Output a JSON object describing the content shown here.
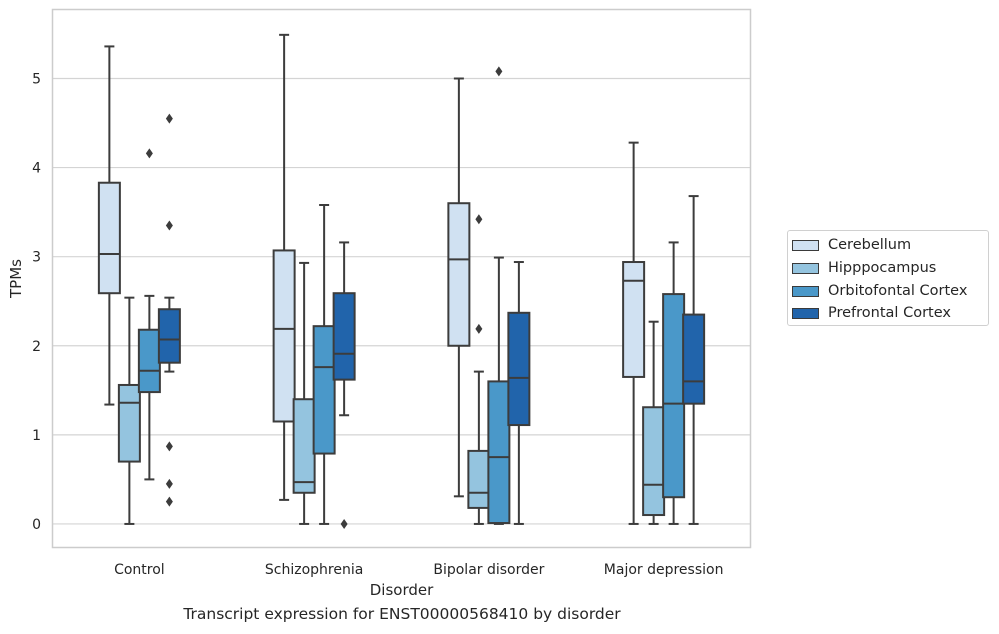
{
  "chart_data": {
    "type": "box",
    "caption": "Transcript expression for ENST00000568410 by disorder",
    "xlabel": "Disorder",
    "ylabel": "TPMs",
    "ylim": [
      -0.27,
      5.78
    ],
    "yticks": [
      0,
      1,
      2,
      3,
      4,
      5
    ],
    "grid": "horizontal",
    "legend_position": "right",
    "categories": [
      "Control",
      "Schizophrenia",
      "Bipolar disorder",
      "Major depression"
    ],
    "series": [
      {
        "name": "Cerebellum",
        "color": "#d0e1f2",
        "boxes": [
          {
            "whisker_low": 1.34,
            "q1": 2.59,
            "median": 3.03,
            "q3": 3.83,
            "whisker_high": 5.36,
            "outliers": []
          },
          {
            "whisker_low": 0.27,
            "q1": 1.15,
            "median": 2.19,
            "q3": 3.07,
            "whisker_high": 5.49,
            "outliers": []
          },
          {
            "whisker_low": 0.31,
            "q1": 2.0,
            "median": 2.97,
            "q3": 3.6,
            "whisker_high": 5.0,
            "outliers": []
          },
          {
            "whisker_low": 0.0,
            "q1": 1.65,
            "median": 2.73,
            "q3": 2.94,
            "whisker_high": 4.28,
            "outliers": []
          }
        ]
      },
      {
        "name": "Hipppocampus",
        "color": "#94c4df",
        "boxes": [
          {
            "whisker_low": 0.0,
            "q1": 0.7,
            "median": 1.36,
            "q3": 1.56,
            "whisker_high": 2.54,
            "outliers": []
          },
          {
            "whisker_low": 0.0,
            "q1": 0.35,
            "median": 0.47,
            "q3": 1.4,
            "whisker_high": 2.93,
            "outliers": []
          },
          {
            "whisker_low": 0.0,
            "q1": 0.18,
            "median": 0.35,
            "q3": 0.82,
            "whisker_high": 1.71,
            "outliers": [
              3.42,
              2.19
            ]
          },
          {
            "whisker_low": 0.0,
            "q1": 0.1,
            "median": 0.44,
            "q3": 1.31,
            "whisker_high": 2.27,
            "outliers": []
          }
        ]
      },
      {
        "name": "Orbitofontal Cortex",
        "color": "#4a98c9",
        "boxes": [
          {
            "whisker_low": 0.5,
            "q1": 1.48,
            "median": 1.72,
            "q3": 2.18,
            "whisker_high": 2.56,
            "outliers": [
              4.16
            ]
          },
          {
            "whisker_low": 0.0,
            "q1": 0.79,
            "median": 1.76,
            "q3": 2.22,
            "whisker_high": 3.58,
            "outliers": []
          },
          {
            "whisker_low": 0.0,
            "q1": 0.01,
            "median": 0.75,
            "q3": 1.6,
            "whisker_high": 2.99,
            "outliers": [
              5.08
            ]
          },
          {
            "whisker_low": 0.0,
            "q1": 0.3,
            "median": 1.35,
            "q3": 2.58,
            "whisker_high": 3.16,
            "outliers": []
          }
        ]
      },
      {
        "name": "Prefrontal Cortex",
        "color": "#2164ab",
        "boxes": [
          {
            "whisker_low": 1.71,
            "q1": 1.81,
            "median": 2.07,
            "q3": 2.41,
            "whisker_high": 2.54,
            "outliers": [
              4.55,
              3.35,
              0.87,
              0.45,
              0.25
            ]
          },
          {
            "whisker_low": 1.22,
            "q1": 1.62,
            "median": 1.91,
            "q3": 2.59,
            "whisker_high": 3.16,
            "outliers": [
              0.0
            ]
          },
          {
            "whisker_low": 0.0,
            "q1": 1.11,
            "median": 1.64,
            "q3": 2.37,
            "whisker_high": 2.94,
            "outliers": []
          },
          {
            "whisker_low": 0.0,
            "q1": 1.35,
            "median": 1.6,
            "q3": 2.35,
            "whisker_high": 3.68,
            "outliers": []
          }
        ]
      }
    ]
  }
}
